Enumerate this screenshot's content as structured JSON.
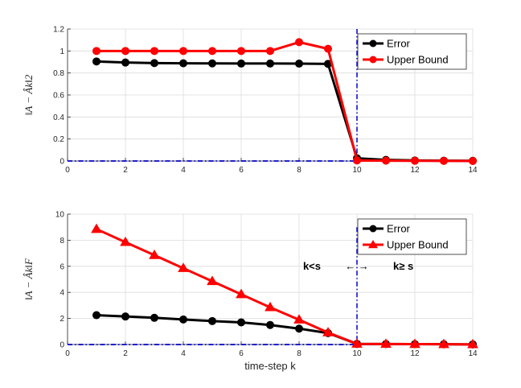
{
  "chart_data": [
    {
      "type": "line",
      "ylabel": "‖A − Âk‖2",
      "xlim": [
        0,
        14
      ],
      "ylim": [
        0,
        1.2
      ],
      "xticks": [
        0,
        2,
        4,
        6,
        8,
        10,
        12,
        14
      ],
      "yticks": [
        0,
        0.2,
        0.4,
        0.6,
        0.8,
        1,
        1.2
      ],
      "grid": true,
      "legend_position": "top-right",
      "x": [
        1,
        2,
        3,
        4,
        5,
        6,
        7,
        8,
        9,
        10,
        11,
        12,
        13,
        14
      ],
      "series": [
        {
          "name": "Error",
          "color": "#000000",
          "marker": "circle",
          "values": [
            0.905,
            0.895,
            0.89,
            0.888,
            0.887,
            0.886,
            0.886,
            0.885,
            0.883,
            0.025,
            0.01,
            0.005,
            0.003,
            0.002
          ]
        },
        {
          "name": "Upper Bound",
          "color": "#ff0000",
          "marker": "circle",
          "values": [
            1.0,
            1.0,
            1.0,
            1.0,
            1.0,
            1.0,
            1.0,
            1.08,
            1.02,
            0.005,
            0.003,
            0.002,
            0.001,
            0.0
          ]
        }
      ],
      "reference_lines": [
        {
          "orientation": "vertical",
          "value": 10,
          "color": "#0000cc",
          "style": "dash-dot"
        },
        {
          "orientation": "horizontal",
          "value": 0,
          "color": "#0000cc",
          "style": "dash-dot"
        }
      ]
    },
    {
      "type": "line",
      "xlabel": "time-step k",
      "ylabel": "‖A − Âk‖F",
      "xlim": [
        0,
        14
      ],
      "ylim": [
        0,
        10
      ],
      "xticks": [
        0,
        2,
        4,
        6,
        8,
        10,
        12,
        14
      ],
      "yticks": [
        0,
        2,
        4,
        6,
        8,
        10
      ],
      "grid": true,
      "legend_position": "top-right",
      "x": [
        1,
        2,
        3,
        4,
        5,
        6,
        7,
        8,
        9,
        10,
        11,
        12,
        13,
        14
      ],
      "series": [
        {
          "name": "Error",
          "color": "#000000",
          "marker": "circle",
          "values": [
            2.25,
            2.15,
            2.05,
            1.92,
            1.8,
            1.7,
            1.5,
            1.22,
            0.88,
            0.05,
            0.04,
            0.03,
            0.02,
            0.01
          ]
        },
        {
          "name": "Upper Bound",
          "color": "#ff0000",
          "marker": "triangle",
          "values": [
            8.85,
            7.85,
            6.85,
            5.85,
            4.85,
            3.85,
            2.85,
            1.9,
            0.92,
            0.05,
            0.04,
            0.03,
            0.02,
            0.01
          ]
        }
      ],
      "reference_lines": [
        {
          "orientation": "vertical",
          "value": 10,
          "color": "#0000cc",
          "style": "dash-dot",
          "ymax": 9
        },
        {
          "orientation": "horizontal",
          "value": 0,
          "color": "#0000cc",
          "style": "dash-dot"
        }
      ],
      "annotation": {
        "left": "k<s",
        "arrows": "←  →",
        "right": "k≥ s"
      }
    }
  ]
}
